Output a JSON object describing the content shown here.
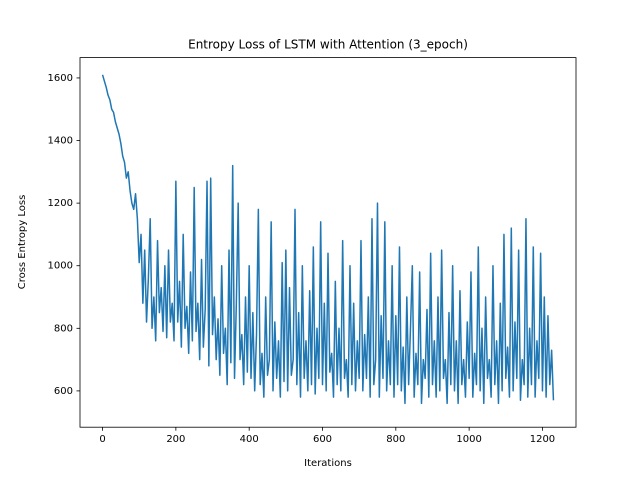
{
  "chart_data": {
    "type": "line",
    "title": "Entropy Loss of LSTM with Attention (3_epoch)",
    "xlabel": "Iterations",
    "ylabel": "Cross Entropy Loss",
    "color": "#1f77b4",
    "xlim": [
      -61.5,
      1291.5
    ],
    "ylim": [
      484,
      1665
    ],
    "xticks": [
      0,
      200,
      400,
      600,
      800,
      1000,
      1200
    ],
    "yticks": [
      600,
      800,
      1000,
      1200,
      1400,
      1600
    ],
    "x": [
      0,
      5,
      10,
      15,
      20,
      25,
      30,
      35,
      40,
      45,
      50,
      55,
      60,
      65,
      70,
      75,
      80,
      85,
      90,
      95,
      100,
      105,
      110,
      115,
      120,
      125,
      130,
      135,
      140,
      145,
      150,
      155,
      160,
      165,
      170,
      175,
      180,
      185,
      190,
      195,
      200,
      205,
      210,
      215,
      220,
      225,
      230,
      235,
      240,
      245,
      250,
      255,
      260,
      265,
      270,
      275,
      280,
      285,
      290,
      295,
      300,
      305,
      310,
      315,
      320,
      325,
      330,
      335,
      340,
      345,
      350,
      355,
      360,
      365,
      370,
      375,
      380,
      385,
      390,
      395,
      400,
      405,
      410,
      415,
      420,
      425,
      430,
      435,
      440,
      445,
      450,
      455,
      460,
      465,
      470,
      475,
      480,
      485,
      490,
      495,
      500,
      505,
      510,
      515,
      520,
      525,
      530,
      535,
      540,
      545,
      550,
      555,
      560,
      565,
      570,
      575,
      580,
      585,
      590,
      595,
      600,
      605,
      610,
      615,
      620,
      625,
      630,
      635,
      640,
      645,
      650,
      655,
      660,
      665,
      670,
      675,
      680,
      685,
      690,
      695,
      700,
      705,
      710,
      715,
      720,
      725,
      730,
      735,
      740,
      745,
      750,
      755,
      760,
      765,
      770,
      775,
      780,
      785,
      790,
      795,
      800,
      805,
      810,
      815,
      820,
      825,
      830,
      835,
      840,
      845,
      850,
      855,
      860,
      865,
      870,
      875,
      880,
      885,
      890,
      895,
      900,
      905,
      910,
      915,
      920,
      925,
      930,
      935,
      940,
      945,
      950,
      955,
      960,
      965,
      970,
      975,
      980,
      985,
      990,
      995,
      1000,
      1005,
      1010,
      1015,
      1020,
      1025,
      1030,
      1035,
      1040,
      1045,
      1050,
      1055,
      1060,
      1065,
      1070,
      1075,
      1080,
      1085,
      1090,
      1095,
      1100,
      1105,
      1110,
      1115,
      1120,
      1125,
      1130,
      1135,
      1140,
      1145,
      1150,
      1155,
      1160,
      1165,
      1170,
      1175,
      1180,
      1185,
      1190,
      1195,
      1200,
      1205,
      1210,
      1215,
      1220,
      1225,
      1230
    ],
    "values": [
      1610,
      1590,
      1570,
      1545,
      1530,
      1500,
      1490,
      1460,
      1440,
      1420,
      1390,
      1350,
      1330,
      1280,
      1300,
      1240,
      1200,
      1180,
      1230,
      1150,
      1010,
      1100,
      880,
      1050,
      820,
      960,
      1150,
      800,
      900,
      760,
      1080,
      850,
      930,
      790,
      1000,
      770,
      1050,
      820,
      880,
      760,
      1270,
      820,
      950,
      740,
      1100,
      800,
      870,
      720,
      980,
      760,
      1250,
      790,
      880,
      700,
      1020,
      740,
      860,
      1270,
      680,
      1280,
      780,
      900,
      700,
      830,
      650,
      1000,
      720,
      800,
      620,
      1050,
      690,
      1320,
      640,
      880,
      1200,
      700,
      780,
      620,
      900,
      660,
      1000,
      640,
      850,
      600,
      780,
      1180,
      620,
      720,
      580,
      900,
      650,
      700,
      1140,
      600,
      820,
      640,
      760,
      580,
      1010,
      630,
      1050,
      600,
      930,
      650,
      700,
      1180,
      620,
      850,
      580,
      1000,
      640,
      760,
      600,
      920,
      620,
      1060,
      590,
      800,
      640,
      1140,
      620,
      880,
      600,
      1040,
      660,
      720,
      580,
      950,
      620,
      800,
      600,
      1080,
      640,
      700,
      580,
      1000,
      620,
      880,
      600,
      760,
      640,
      1080,
      600,
      780,
      640,
      900,
      580,
      1150,
      620,
      700,
      1200,
      580,
      840,
      640,
      1140,
      600,
      760,
      620,
      1000,
      580,
      840,
      620,
      1060,
      600,
      740,
      560,
      900,
      620,
      800,
      1000,
      580,
      720,
      620,
      980,
      560,
      700,
      640,
      860,
      580,
      1040,
      620,
      760,
      580,
      900,
      600,
      1050,
      640,
      700,
      560,
      850,
      620,
      1000,
      600,
      760,
      560,
      920,
      620,
      700,
      580,
      820,
      640,
      980,
      580,
      720,
      620,
      1060,
      600,
      800,
      560,
      900,
      640,
      700,
      580,
      1000,
      620,
      760,
      560,
      880,
      600,
      1100,
      640,
      740,
      580,
      1120,
      600,
      820,
      640,
      1050,
      570,
      700,
      620,
      1150,
      580,
      800,
      620,
      1060,
      580,
      760,
      640,
      1040,
      600,
      900,
      580,
      840,
      620,
      730,
      570
    ]
  }
}
